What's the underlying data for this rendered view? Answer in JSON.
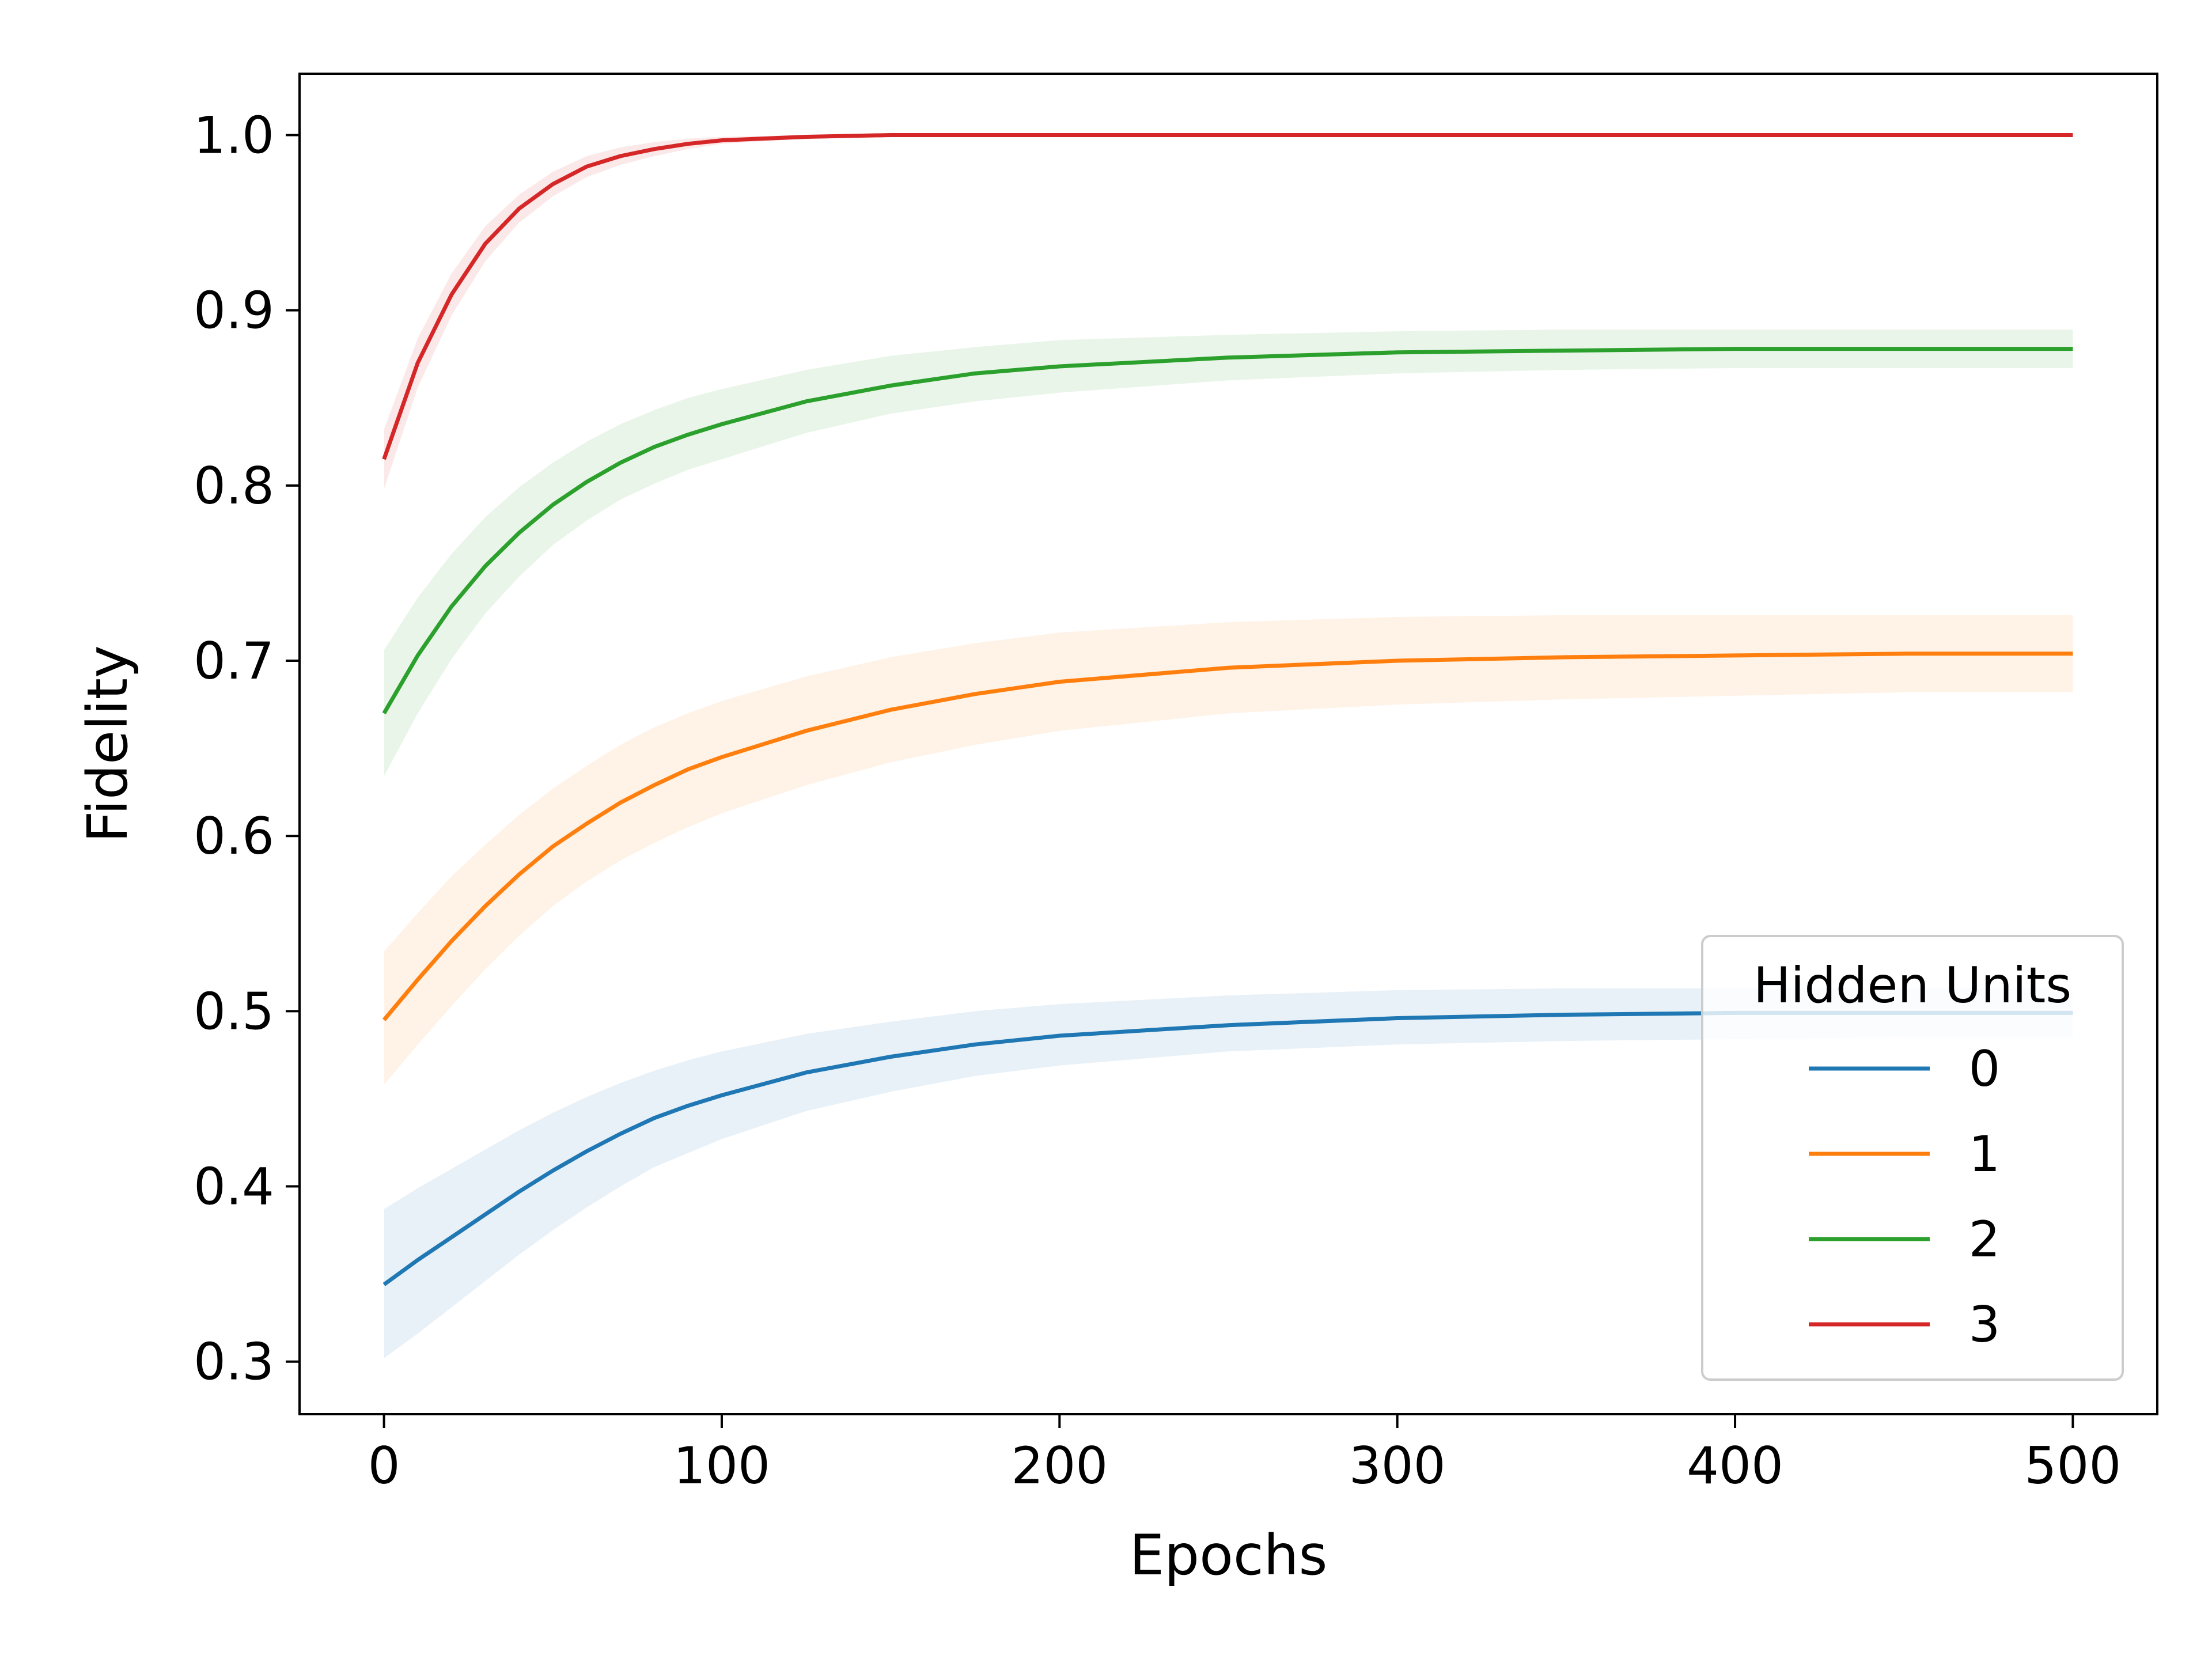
{
  "chart_data": {
    "type": "line",
    "title": "",
    "xlabel": "Epochs",
    "ylabel": "Fidelity",
    "xlim": [
      -25,
      525
    ],
    "ylim": [
      0.27,
      1.035
    ],
    "x_ticks": [
      0,
      100,
      200,
      300,
      400,
      500
    ],
    "x_tick_labels": [
      "0",
      "100",
      "200",
      "300",
      "400",
      "500"
    ],
    "y_ticks": [
      0.3,
      0.4,
      0.5,
      0.6,
      0.7,
      0.8,
      0.9,
      1.0
    ],
    "y_tick_labels": [
      "0.3",
      "0.4",
      "0.5",
      "0.6",
      "0.7",
      "0.8",
      "0.9",
      "1.0"
    ],
    "grid": false,
    "legend": {
      "title": "Hidden Units",
      "placement": "lower-right"
    },
    "x": [
      0,
      10,
      20,
      30,
      40,
      50,
      60,
      70,
      80,
      90,
      100,
      125,
      150,
      175,
      200,
      250,
      300,
      350,
      400,
      450,
      500
    ],
    "series": [
      {
        "name": "0",
        "color": "#1f77b4",
        "values": [
          0.344,
          0.358,
          0.371,
          0.384,
          0.397,
          0.409,
          0.42,
          0.43,
          0.439,
          0.446,
          0.452,
          0.465,
          0.474,
          0.481,
          0.486,
          0.492,
          0.496,
          0.498,
          0.499,
          0.499,
          0.499
        ],
        "band_upper": [
          0.387,
          0.399,
          0.41,
          0.421,
          0.432,
          0.442,
          0.451,
          0.459,
          0.466,
          0.472,
          0.477,
          0.487,
          0.494,
          0.5,
          0.504,
          0.509,
          0.512,
          0.513,
          0.513,
          0.513,
          0.513
        ],
        "band_lower": [
          0.302,
          0.316,
          0.331,
          0.346,
          0.361,
          0.375,
          0.388,
          0.4,
          0.411,
          0.419,
          0.427,
          0.443,
          0.454,
          0.463,
          0.469,
          0.477,
          0.481,
          0.483,
          0.484,
          0.485,
          0.485
        ]
      },
      {
        "name": "1",
        "color": "#ff7f0e",
        "values": [
          0.495,
          0.518,
          0.54,
          0.56,
          0.578,
          0.594,
          0.607,
          0.619,
          0.629,
          0.638,
          0.645,
          0.66,
          0.672,
          0.681,
          0.688,
          0.696,
          0.7,
          0.702,
          0.703,
          0.704,
          0.704
        ],
        "band_upper": [
          0.534,
          0.556,
          0.577,
          0.595,
          0.612,
          0.627,
          0.64,
          0.652,
          0.662,
          0.67,
          0.677,
          0.691,
          0.702,
          0.71,
          0.716,
          0.722,
          0.725,
          0.726,
          0.726,
          0.726,
          0.726
        ],
        "band_lower": [
          0.458,
          0.481,
          0.503,
          0.524,
          0.543,
          0.56,
          0.574,
          0.586,
          0.596,
          0.605,
          0.613,
          0.629,
          0.642,
          0.652,
          0.66,
          0.67,
          0.675,
          0.678,
          0.68,
          0.682,
          0.682
        ]
      },
      {
        "name": "2",
        "color": "#2ca02c",
        "values": [
          0.67,
          0.703,
          0.731,
          0.754,
          0.773,
          0.789,
          0.802,
          0.813,
          0.822,
          0.829,
          0.835,
          0.848,
          0.857,
          0.864,
          0.868,
          0.873,
          0.876,
          0.877,
          0.878,
          0.878,
          0.878
        ],
        "band_upper": [
          0.706,
          0.736,
          0.761,
          0.782,
          0.799,
          0.813,
          0.825,
          0.835,
          0.843,
          0.85,
          0.855,
          0.866,
          0.874,
          0.879,
          0.883,
          0.886,
          0.888,
          0.889,
          0.889,
          0.889,
          0.889
        ],
        "band_lower": [
          0.634,
          0.67,
          0.701,
          0.727,
          0.748,
          0.766,
          0.78,
          0.792,
          0.801,
          0.809,
          0.815,
          0.83,
          0.841,
          0.848,
          0.853,
          0.86,
          0.864,
          0.866,
          0.867,
          0.867,
          0.867
        ]
      },
      {
        "name": "3",
        "color": "#d62728",
        "values": [
          0.815,
          0.87,
          0.909,
          0.938,
          0.958,
          0.972,
          0.982,
          0.988,
          0.992,
          0.995,
          0.997,
          0.999,
          1.0,
          1.0,
          1.0,
          1.0,
          1.0,
          1.0,
          1.0,
          1.0,
          1.0
        ],
        "band_upper": [
          0.832,
          0.884,
          0.921,
          0.948,
          0.966,
          0.979,
          0.988,
          0.993,
          0.996,
          0.998,
          0.999,
          1.0,
          1.0,
          1.0,
          1.0,
          1.0,
          1.0,
          1.0,
          1.0,
          1.0,
          1.0
        ],
        "band_lower": [
          0.798,
          0.856,
          0.897,
          0.928,
          0.95,
          0.965,
          0.976,
          0.983,
          0.988,
          0.992,
          0.995,
          0.998,
          0.999,
          1.0,
          1.0,
          1.0,
          1.0,
          1.0,
          1.0,
          1.0,
          1.0
        ]
      }
    ]
  }
}
